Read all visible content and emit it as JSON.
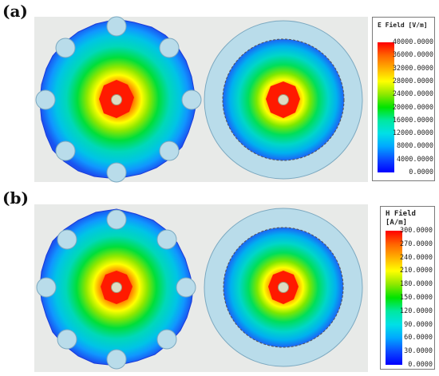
{
  "panels": [
    {
      "label": "(a)",
      "legend": {
        "title": "E Field [V/m]",
        "ticks": [
          "40000.0000",
          "36000.0000",
          "32000.0000",
          "28000.0000",
          "24000.0000",
          "20000.0000",
          "16000.0000",
          "12000.0000",
          "8000.0000",
          "4000.0000",
          "0.0000"
        ]
      }
    },
    {
      "label": "(b)",
      "legend": {
        "title": "H Field [A/m]",
        "ticks": [
          "300.0000",
          "270.0000",
          "240.0000",
          "210.0000",
          "180.0000",
          "150.0000",
          "120.0000",
          "90.0000",
          "60.0000",
          "30.0000",
          "0.0000"
        ]
      }
    }
  ],
  "colors": {
    "plot_background": "#e8eae8",
    "shield_ring": "#b9dcea",
    "shield_stroke": "#7ca9c0",
    "inner_conductor": "#dcdcc4",
    "colormap": [
      "#0000ff",
      "#0b4cff",
      "#00a8ff",
      "#00e0e6",
      "#00e8a0",
      "#00e400",
      "#8ee800",
      "#ffff00",
      "#ffb000",
      "#ff6400",
      "#ff0000"
    ]
  }
}
